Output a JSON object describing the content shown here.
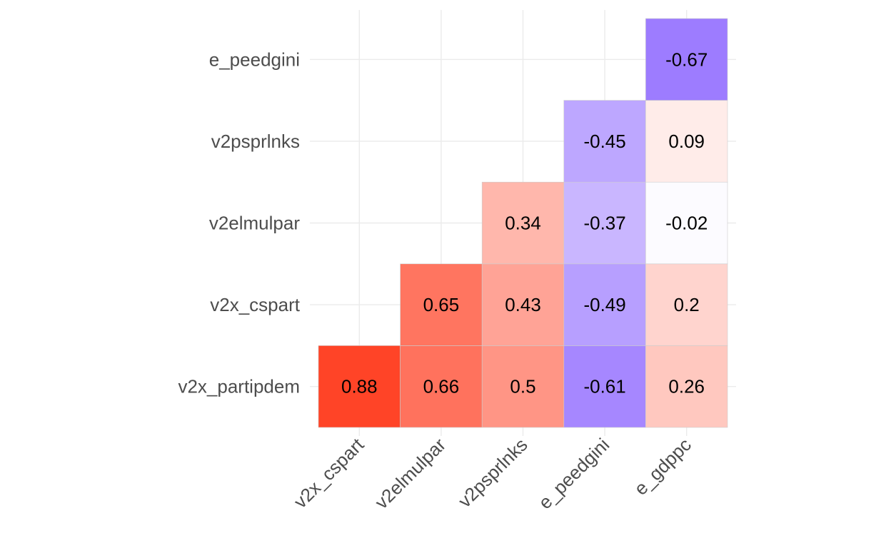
{
  "chart_data": {
    "type": "heatmap",
    "title": "",
    "xlabel": "",
    "ylabel": "",
    "x_categories": [
      "v2x_cspart",
      "v2elmulpar",
      "v2psprlnks",
      "e_peedgini",
      "e_gdppc"
    ],
    "y_categories": [
      "v2x_partipdem",
      "v2x_cspart",
      "v2elmulpar",
      "v2psprlnks",
      "e_peedgini"
    ],
    "value_range": [
      -1,
      1
    ],
    "colors": {
      "low": "#6D3BFF",
      "mid": "#FFFFFF",
      "high": "#FF2A0A"
    },
    "grid": true,
    "legend": "none",
    "cells": [
      {
        "x": "v2x_cspart",
        "y": "v2x_partipdem",
        "value": 0.88,
        "label": "0.88"
      },
      {
        "x": "v2elmulpar",
        "y": "v2x_partipdem",
        "value": 0.66,
        "label": "0.66"
      },
      {
        "x": "v2psprlnks",
        "y": "v2x_partipdem",
        "value": 0.5,
        "label": "0.5"
      },
      {
        "x": "e_peedgini",
        "y": "v2x_partipdem",
        "value": -0.61,
        "label": "-0.61"
      },
      {
        "x": "e_gdppc",
        "y": "v2x_partipdem",
        "value": 0.26,
        "label": "0.26"
      },
      {
        "x": "v2elmulpar",
        "y": "v2x_cspart",
        "value": 0.65,
        "label": "0.65"
      },
      {
        "x": "v2psprlnks",
        "y": "v2x_cspart",
        "value": 0.43,
        "label": "0.43"
      },
      {
        "x": "e_peedgini",
        "y": "v2x_cspart",
        "value": -0.49,
        "label": "-0.49"
      },
      {
        "x": "e_gdppc",
        "y": "v2x_cspart",
        "value": 0.2,
        "label": "0.2"
      },
      {
        "x": "v2psprlnks",
        "y": "v2elmulpar",
        "value": 0.34,
        "label": "0.34"
      },
      {
        "x": "e_peedgini",
        "y": "v2elmulpar",
        "value": -0.37,
        "label": "-0.37"
      },
      {
        "x": "e_gdppc",
        "y": "v2elmulpar",
        "value": -0.02,
        "label": "-0.02"
      },
      {
        "x": "e_peedgini",
        "y": "v2psprlnks",
        "value": -0.45,
        "label": "-0.45"
      },
      {
        "x": "e_gdppc",
        "y": "v2psprlnks",
        "value": 0.09,
        "label": "0.09"
      },
      {
        "x": "e_gdppc",
        "y": "e_peedgini",
        "value": -0.67,
        "label": "-0.67"
      }
    ]
  }
}
